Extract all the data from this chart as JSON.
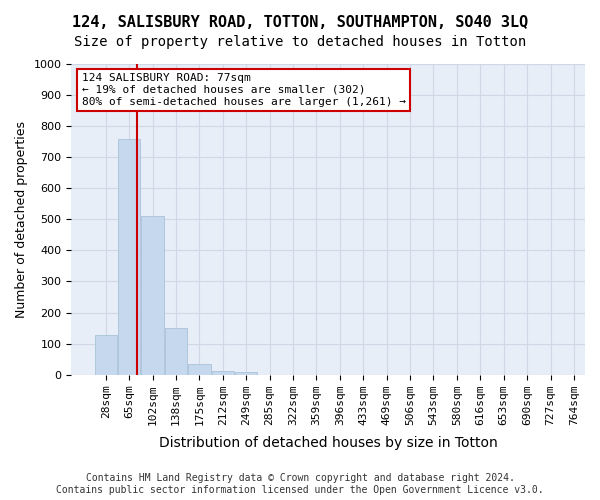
{
  "title": "124, SALISBURY ROAD, TOTTON, SOUTHAMPTON, SO40 3LQ",
  "subtitle": "Size of property relative to detached houses in Totton",
  "xlabel": "Distribution of detached houses by size in Totton",
  "ylabel": "Number of detached properties",
  "bar_values": [
    128,
    760,
    510,
    150,
    35,
    12,
    7,
    0,
    0,
    0,
    0,
    0,
    0,
    0,
    0,
    0,
    0,
    0,
    0,
    0
  ],
  "bar_labels": [
    "28sqm",
    "65sqm",
    "102sqm",
    "138sqm",
    "175sqm",
    "212sqm",
    "249sqm",
    "285sqm",
    "322sqm",
    "359sqm",
    "396sqm",
    "433sqm",
    "469sqm",
    "506sqm",
    "543sqm",
    "580sqm",
    "616sqm",
    "653sqm",
    "690sqm",
    "727sqm",
    "764sqm"
  ],
  "bar_color": "#c5d8ed",
  "bar_edge_color": "#a0bcd4",
  "grid_color": "#d0d8e8",
  "background_color": "#e8eef7",
  "ylim": [
    0,
    1000
  ],
  "yticks": [
    0,
    100,
    200,
    300,
    400,
    500,
    600,
    700,
    800,
    900,
    1000
  ],
  "vline_x": 77,
  "vline_color": "#cc0000",
  "annotation_text": "124 SALISBURY ROAD: 77sqm\n← 19% of detached houses are smaller (302)\n80% of semi-detached houses are larger (1,261) →",
  "annotation_box_color": "#ffffff",
  "annotation_border_color": "#cc0000",
  "footer_text": "Contains HM Land Registry data © Crown copyright and database right 2024.\nContains public sector information licensed under the Open Government Licence v3.0.",
  "title_fontsize": 11,
  "subtitle_fontsize": 10,
  "xlabel_fontsize": 10,
  "ylabel_fontsize": 9,
  "tick_fontsize": 8,
  "annotation_fontsize": 8,
  "footer_fontsize": 7
}
